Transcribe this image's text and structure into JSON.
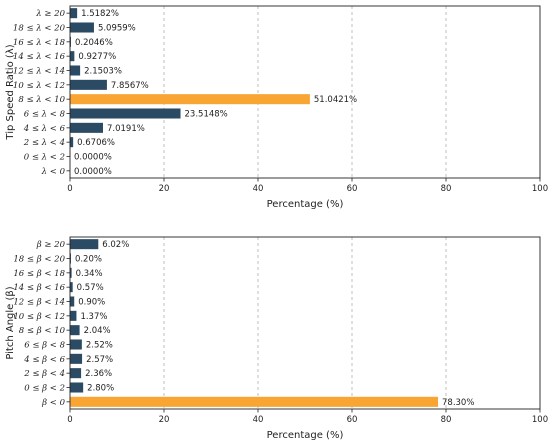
{
  "colors": {
    "bar": "#2b4a63",
    "highlight": "#f9a533"
  },
  "chart_data": [
    {
      "type": "bar",
      "orientation": "horizontal",
      "xlabel": "Percentage (%)",
      "ylabel": "Tip Speed Ratio (λ)",
      "xlim": [
        0,
        100
      ],
      "xticks": [
        "0",
        "20",
        "40",
        "60",
        "80",
        "100"
      ],
      "grid": "vertical dashed",
      "categories": [
        "λ < 0",
        "0 ≤ λ < 2",
        "2 ≤ λ < 4",
        "4 ≤ λ < 6",
        "6 ≤ λ < 8",
        "8 ≤ λ < 10",
        "10 ≤ λ < 12",
        "12 ≤ λ < 14",
        "14 ≤ λ < 16",
        "16 ≤ λ < 18",
        "18 ≤ λ < 20",
        "λ ≥ 20"
      ],
      "values": [
        0.0,
        0.0,
        0.6706,
        7.0191,
        23.5148,
        51.0421,
        7.8567,
        2.1503,
        0.9277,
        0.2046,
        5.0959,
        1.5182
      ],
      "labels": [
        "0.0000%",
        "0.0000%",
        "0.6706%",
        "7.0191%",
        "23.5148%",
        "51.0421%",
        "7.8567%",
        "2.1503%",
        "0.9277%",
        "0.2046%",
        "5.0959%",
        "1.5182%"
      ],
      "highlight_index": 5
    },
    {
      "type": "bar",
      "orientation": "horizontal",
      "xlabel": "Percentage (%)",
      "ylabel": "Pitch Angle (β)",
      "xlim": [
        0,
        100
      ],
      "xticks": [
        "0",
        "20",
        "40",
        "60",
        "80",
        "100"
      ],
      "grid": "vertical dashed",
      "categories": [
        "β < 0",
        "0 ≤ β < 2",
        "2 ≤ β < 4",
        "4 ≤ β < 6",
        "6 ≤ β < 8",
        "8 ≤ β < 10",
        "10 ≤ β < 12",
        "12 ≤ β < 14",
        "14 ≤ β < 16",
        "16 ≤ β < 18",
        "18 ≤ β < 20",
        "β ≥ 20"
      ],
      "values": [
        78.3,
        2.8,
        2.36,
        2.57,
        2.52,
        2.04,
        1.37,
        0.9,
        0.57,
        0.34,
        0.2,
        6.02
      ],
      "labels": [
        "78.30%",
        "2.80%",
        "2.36%",
        "2.57%",
        "2.52%",
        "2.04%",
        "1.37%",
        "0.90%",
        "0.57%",
        "0.34%",
        "0.20%",
        "6.02%"
      ],
      "highlight_index": 0
    }
  ]
}
